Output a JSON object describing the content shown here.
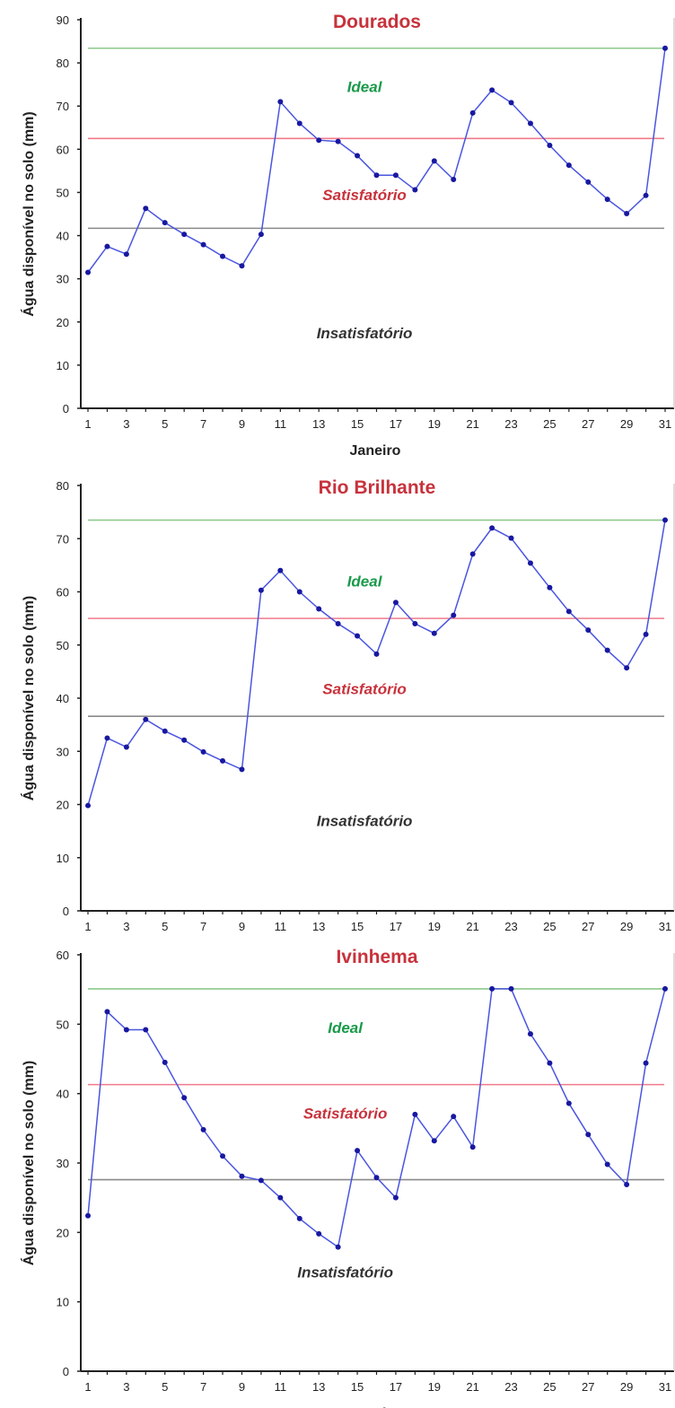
{
  "chart_data": [
    {
      "type": "line",
      "title": "Dourados",
      "xlabel": "Janeiro",
      "ylabel": "Água disponível no solo (mm)",
      "ylim": [
        0,
        90
      ],
      "yticks": [
        0,
        10,
        20,
        30,
        40,
        50,
        60,
        70,
        80,
        90
      ],
      "xticks": [
        1,
        3,
        5,
        7,
        9,
        11,
        13,
        15,
        17,
        19,
        21,
        23,
        25,
        27,
        29,
        31
      ],
      "x": [
        1,
        2,
        3,
        4,
        5,
        6,
        7,
        8,
        9,
        10,
        11,
        12,
        13,
        14,
        15,
        16,
        17,
        18,
        19,
        20,
        21,
        22,
        23,
        24,
        25,
        26,
        27,
        28,
        29,
        30,
        31
      ],
      "series": [
        {
          "values": [
            31.5,
            37.5,
            35.7,
            46.3,
            43.0,
            40.3,
            37.9,
            35.2,
            33.0,
            40.3,
            71.0,
            66.0,
            62.1,
            61.8,
            58.5,
            54.0,
            54.0,
            50.6,
            57.3,
            53.0,
            68.4,
            73.7,
            70.8,
            66.0,
            60.9,
            56.3,
            52.4,
            48.4,
            45.1,
            49.3,
            83.4
          ]
        }
      ],
      "reference_lines": [
        {
          "value": 83.4,
          "color": "#8cc98c"
        },
        {
          "value": 62.5,
          "color": "#f07a8a"
        },
        {
          "value": 41.7,
          "color": "#8a8a8a"
        }
      ],
      "annotations": [
        {
          "text": "Ideal",
          "x": 15,
          "y": 74.5,
          "color": "#1a9a4a"
        },
        {
          "text": "Satisfatório",
          "x": 15,
          "y": 49.5,
          "color": "#c8323c"
        },
        {
          "text": "Insatisfatório",
          "x": 15,
          "y": 17.5,
          "color": "#333333"
        }
      ],
      "line_color": "#4a55e0",
      "marker_color": "#1818a0",
      "grid": false,
      "legend": "none"
    },
    {
      "type": "line",
      "title": "Rio Brilhante",
      "xlabel": "Janeiro",
      "ylabel": "Água disponível no solo (mm)",
      "ylim": [
        0,
        80
      ],
      "yticks": [
        0,
        10,
        20,
        30,
        40,
        50,
        60,
        70,
        80
      ],
      "xticks": [
        1,
        3,
        5,
        7,
        9,
        11,
        13,
        15,
        17,
        19,
        21,
        23,
        25,
        27,
        29,
        31
      ],
      "x": [
        1,
        2,
        3,
        4,
        5,
        6,
        7,
        8,
        9,
        10,
        11,
        12,
        13,
        14,
        15,
        16,
        17,
        18,
        19,
        20,
        21,
        22,
        23,
        24,
        25,
        26,
        27,
        28,
        29,
        30,
        31
      ],
      "series": [
        {
          "values": [
            19.8,
            32.5,
            30.8,
            36.0,
            33.8,
            32.1,
            29.9,
            28.2,
            26.6,
            60.3,
            64.0,
            60.0,
            56.8,
            54.0,
            51.7,
            48.3,
            58.0,
            54.0,
            52.2,
            55.6,
            67.1,
            72.0,
            70.1,
            65.4,
            60.8,
            56.3,
            52.8,
            49.0,
            45.7,
            52.0,
            73.5
          ]
        }
      ],
      "reference_lines": [
        {
          "value": 73.5,
          "color": "#8cc98c"
        },
        {
          "value": 55.0,
          "color": "#f07a8a"
        },
        {
          "value": 36.6,
          "color": "#8a8a8a"
        }
      ],
      "annotations": [
        {
          "text": "Ideal",
          "x": 15,
          "y": 62.0,
          "color": "#1a9a4a"
        },
        {
          "text": "Satisfatório",
          "x": 15,
          "y": 41.8,
          "color": "#c8323c"
        },
        {
          "text": "Insatisfatório",
          "x": 15,
          "y": 17.0,
          "color": "#333333"
        }
      ],
      "line_color": "#4a55e0",
      "marker_color": "#1818a0",
      "grid": false,
      "legend": "none"
    },
    {
      "type": "line",
      "title": "Ivinhema",
      "xlabel": "Janeiro",
      "ylabel": "Água disponível no solo (mm)",
      "ylim": [
        0,
        60
      ],
      "yticks": [
        0,
        10,
        20,
        30,
        40,
        50,
        60
      ],
      "xticks": [
        1,
        3,
        5,
        7,
        9,
        11,
        13,
        15,
        17,
        19,
        21,
        23,
        25,
        27,
        29,
        31
      ],
      "x": [
        1,
        2,
        3,
        4,
        5,
        6,
        7,
        8,
        9,
        10,
        11,
        12,
        13,
        14,
        15,
        16,
        17,
        18,
        19,
        20,
        21,
        22,
        23,
        24,
        25,
        26,
        27,
        28,
        29,
        30,
        31
      ],
      "series": [
        {
          "values": [
            22.4,
            51.8,
            49.2,
            49.2,
            44.5,
            39.4,
            34.8,
            31.0,
            28.1,
            27.5,
            25.0,
            22.0,
            19.8,
            17.9,
            31.8,
            27.9,
            25.0,
            37.0,
            33.2,
            36.7,
            32.3,
            55.1,
            55.1,
            48.6,
            44.4,
            38.6,
            34.1,
            29.8,
            26.9,
            44.4,
            55.1
          ]
        }
      ],
      "reference_lines": [
        {
          "value": 55.1,
          "color": "#8cc98c"
        },
        {
          "value": 41.3,
          "color": "#f07a8a"
        },
        {
          "value": 27.6,
          "color": "#8a8a8a"
        }
      ],
      "annotations": [
        {
          "text": "Ideal",
          "x": 14,
          "y": 49.5,
          "color": "#1a9a4a"
        },
        {
          "text": "Satisfatório",
          "x": 14,
          "y": 37.2,
          "color": "#c8323c"
        },
        {
          "text": "Insatisfatório",
          "x": 14,
          "y": 14.3,
          "color": "#333333"
        }
      ],
      "line_color": "#4a55e0",
      "marker_color": "#1818a0",
      "grid": false,
      "legend": "none"
    }
  ]
}
